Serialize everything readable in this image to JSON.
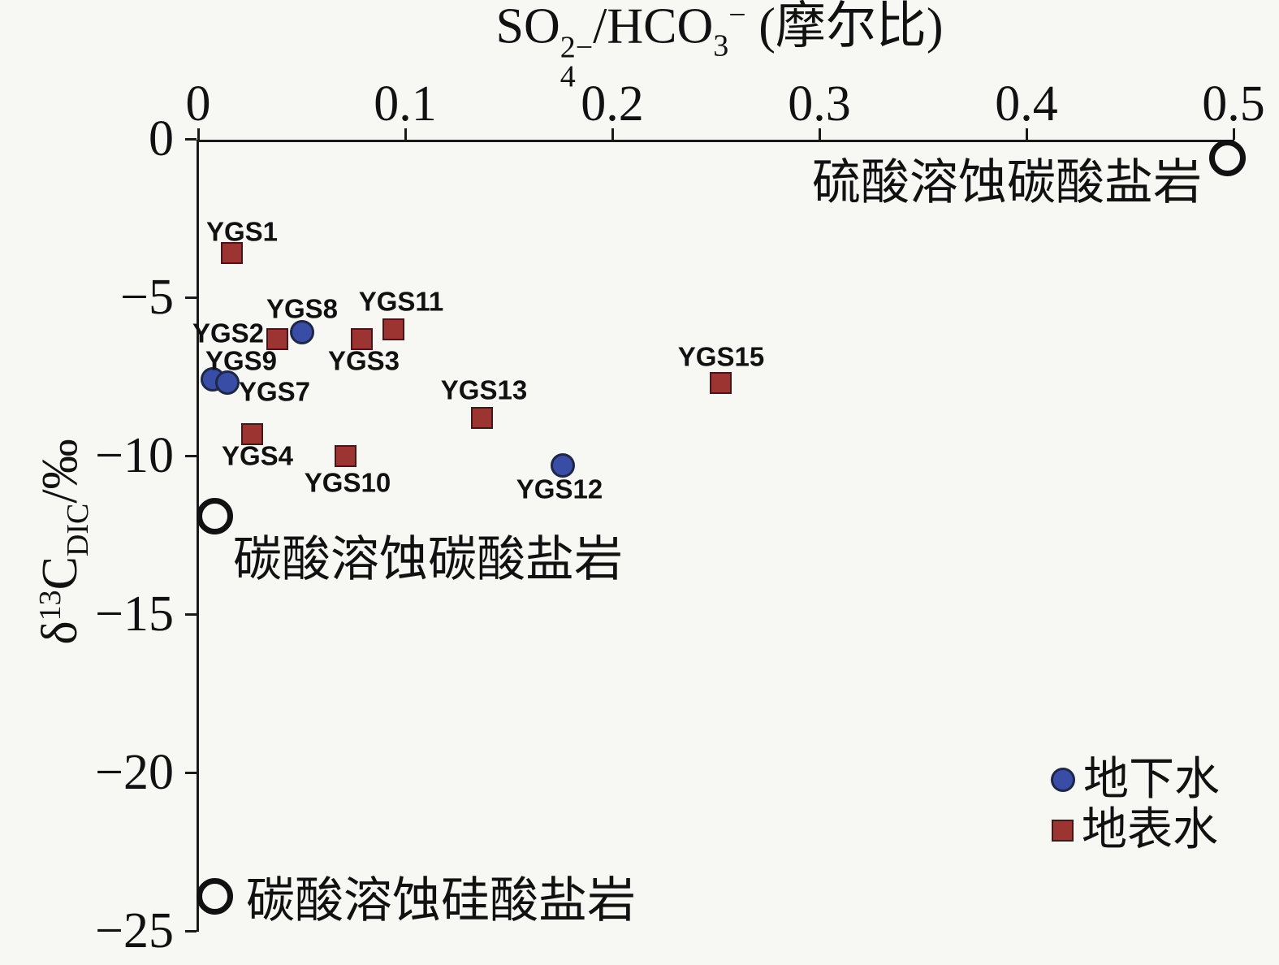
{
  "chart_data": {
    "type": "scatter",
    "x_axis": {
      "title_parts": {
        "base1": "SO",
        "stack_sup": "2−",
        "stack_sub": "4",
        "base2": "/HCO",
        "sub2": "3",
        "sup2": "−",
        "base3": " (摩尔比)"
      },
      "range": [
        0,
        0.5
      ],
      "ticks": [
        {
          "value": 0,
          "label": "0"
        },
        {
          "value": 0.1,
          "label": "0.1"
        },
        {
          "value": 0.2,
          "label": "0.2"
        },
        {
          "value": 0.3,
          "label": "0.3"
        },
        {
          "value": 0.4,
          "label": "0.4"
        },
        {
          "value": 0.5,
          "label": "0.5"
        }
      ]
    },
    "y_axis": {
      "title_parts": {
        "base1": "δ",
        "sup1": "13",
        "base2": "C",
        "sub1": "DIC",
        "base3": "/‰"
      },
      "range": [
        -25,
        0
      ],
      "ticks": [
        {
          "value": 0,
          "label": "0"
        },
        {
          "value": -5,
          "label": "−5"
        },
        {
          "value": -10,
          "label": "−10"
        },
        {
          "value": -15,
          "label": "−15"
        },
        {
          "value": -20,
          "label": "−20"
        },
        {
          "value": -25,
          "label": "−25"
        }
      ]
    },
    "series": [
      {
        "name": "地下水",
        "marker": "circle",
        "fill": "#3a4da6",
        "stroke": "#1e2747",
        "points": [
          {
            "id": "YGS8",
            "x": 0.05,
            "y": -6.1
          },
          {
            "id": "YGS9",
            "x": 0.007,
            "y": -7.6
          },
          {
            "id": "YGS7",
            "x": 0.014,
            "y": -7.7
          },
          {
            "id": "YGS12",
            "x": 0.176,
            "y": -10.3
          }
        ]
      },
      {
        "name": "地表水",
        "marker": "square",
        "fill": "#9c3532",
        "stroke": "#45161a",
        "points": [
          {
            "id": "YGS1",
            "x": 0.016,
            "y": -3.6
          },
          {
            "id": "YGS2",
            "x": 0.038,
            "y": -6.3
          },
          {
            "id": "YGS3",
            "x": 0.079,
            "y": -6.3
          },
          {
            "id": "YGS11",
            "x": 0.094,
            "y": -6.0
          },
          {
            "id": "YGS4",
            "x": 0.026,
            "y": -9.3
          },
          {
            "id": "YGS10",
            "x": 0.071,
            "y": -10.0
          },
          {
            "id": "YGS13",
            "x": 0.137,
            "y": -8.8
          },
          {
            "id": "YGS15",
            "x": 0.252,
            "y": -7.7
          }
        ]
      }
    ],
    "endmembers": [
      {
        "label": "硫酸溶蚀碳酸盐岩",
        "x": 0.497,
        "y": -0.6
      },
      {
        "label": "碳酸溶蚀碳酸盐岩",
        "x": 0.008,
        "y": -11.9
      },
      {
        "label": "碳酸溶蚀硅酸盐岩",
        "x": 0.008,
        "y": -23.9
      }
    ],
    "legend": {
      "items": [
        {
          "label": "地下水",
          "marker": "circle"
        },
        {
          "label": "地表水",
          "marker": "square"
        }
      ]
    },
    "colors": {
      "axis": "#1a1a1a",
      "text": "#111111",
      "endmember_ring": "#111111",
      "background": "#f7f7f4"
    }
  }
}
